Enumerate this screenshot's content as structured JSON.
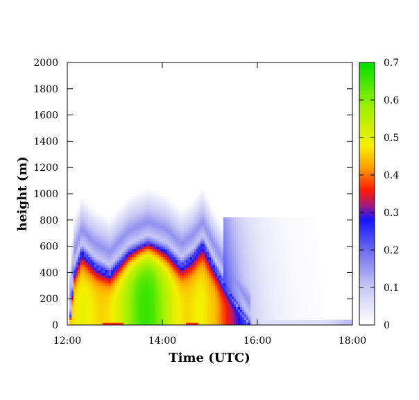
{
  "chart_data": {
    "type": "heatmap",
    "title": "",
    "xlabel": "Time (UTC)",
    "ylabel": "height (m)",
    "x_ticks": [
      "12:00",
      "14:00",
      "16:00",
      "18:00"
    ],
    "x_tick_hours": [
      12,
      14,
      16,
      18
    ],
    "xlim_hours": [
      12,
      18
    ],
    "y_ticks": [
      0,
      200,
      400,
      600,
      800,
      1000,
      1200,
      1400,
      1600,
      1800,
      2000
    ],
    "ylim": [
      0,
      2000
    ],
    "colorbar": {
      "ticks": [
        0,
        0.1,
        0.2,
        0.3,
        0.4,
        0.5,
        0.6,
        0.7
      ],
      "range": [
        0,
        0.7
      ],
      "stops": [
        {
          "value": 0.0,
          "color": "#ffffff"
        },
        {
          "value": 0.1,
          "color": "#c8c8f4"
        },
        {
          "value": 0.2,
          "color": "#6a6af0"
        },
        {
          "value": 0.28,
          "color": "#1414ff"
        },
        {
          "value": 0.32,
          "color": "#aa1a78"
        },
        {
          "value": 0.36,
          "color": "#ff1a00"
        },
        {
          "value": 0.42,
          "color": "#ffa000"
        },
        {
          "value": 0.48,
          "color": "#f4f000"
        },
        {
          "value": 0.58,
          "color": "#a0f000"
        },
        {
          "value": 0.7,
          "color": "#00e000"
        }
      ]
    },
    "boundary_layer_top_m": [
      {
        "time": 12.05,
        "height": 0
      },
      {
        "time": 12.15,
        "height": 400
      },
      {
        "time": 12.3,
        "height": 560
      },
      {
        "time": 12.6,
        "height": 450
      },
      {
        "time": 12.9,
        "height": 390
      },
      {
        "time": 13.3,
        "height": 550
      },
      {
        "time": 13.7,
        "height": 620
      },
      {
        "time": 14.1,
        "height": 560
      },
      {
        "time": 14.4,
        "height": 450
      },
      {
        "time": 14.65,
        "height": 520
      },
      {
        "time": 14.85,
        "height": 620
      },
      {
        "time": 15.05,
        "height": 470
      },
      {
        "time": 15.4,
        "height": 250
      },
      {
        "time": 15.7,
        "height": 80
      },
      {
        "time": 15.85,
        "height": 0
      }
    ]
  }
}
